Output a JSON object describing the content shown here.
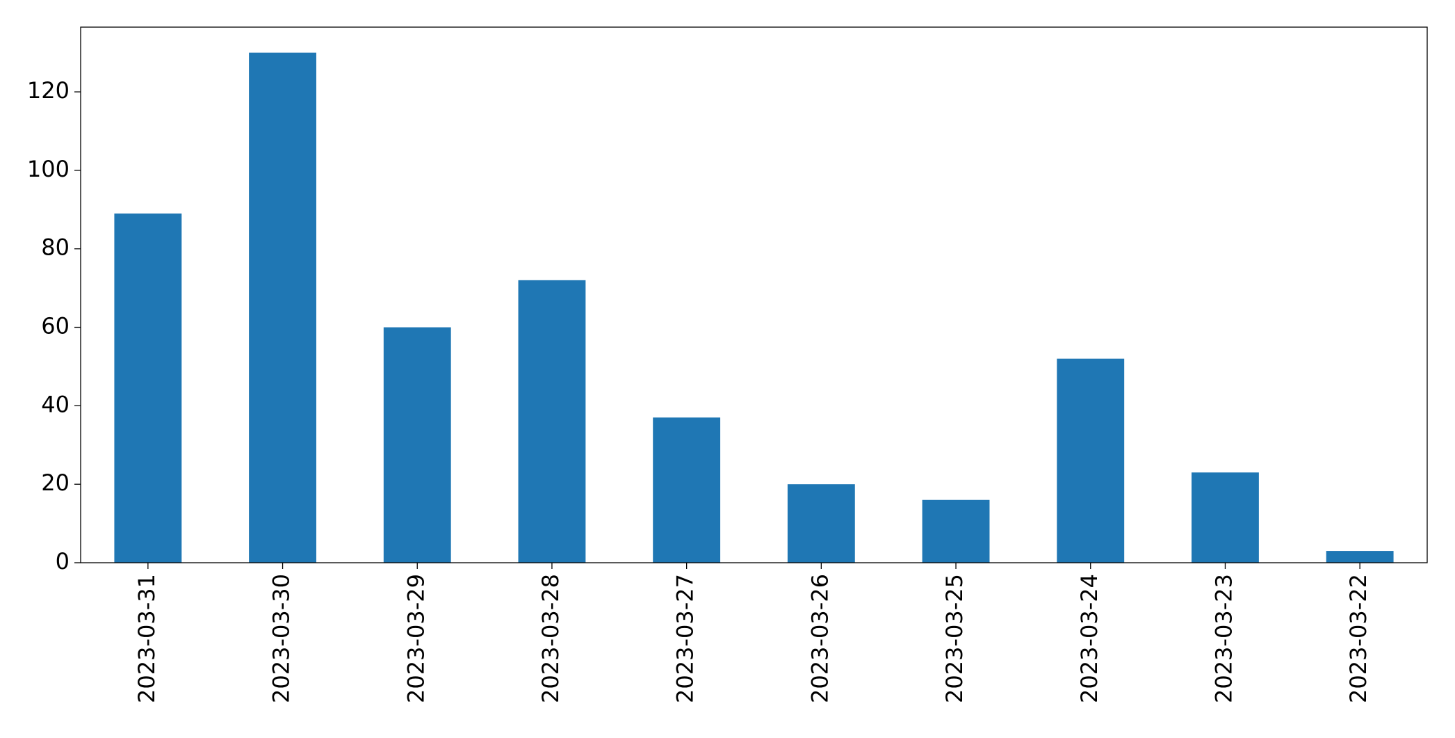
{
  "chart_data": {
    "type": "bar",
    "categories": [
      "2023-03-31",
      "2023-03-30",
      "2023-03-29",
      "2023-03-28",
      "2023-03-27",
      "2023-03-26",
      "2023-03-25",
      "2023-03-24",
      "2023-03-23",
      "2023-03-22"
    ],
    "values": [
      89,
      130,
      60,
      72,
      37,
      20,
      16,
      52,
      23,
      3
    ],
    "color": "#1f77b4",
    "ylim": [
      0,
      136.5
    ],
    "yticks": [
      0,
      20,
      40,
      60,
      80,
      100,
      120
    ],
    "grid": false
  }
}
